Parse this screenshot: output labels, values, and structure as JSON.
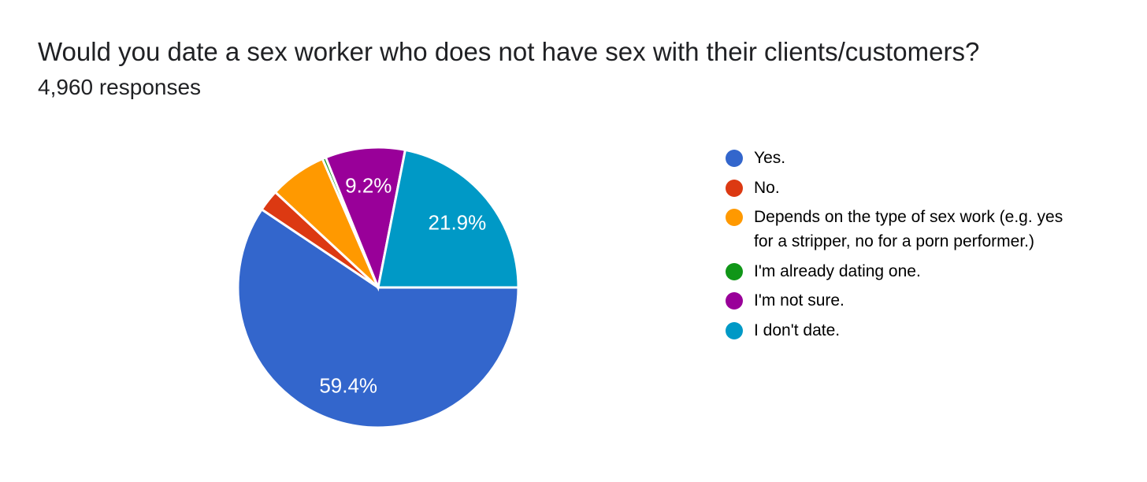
{
  "header": {
    "title": "Would you date a sex worker who does not have sex with their clients/customers?",
    "subtitle": "4,960 responses"
  },
  "chart_data": {
    "type": "pie",
    "title": "Would you date a sex worker who does not have sex with their clients/customers?",
    "subtitle": "4,960 responses",
    "legend_position": "right",
    "start_angle_deg": 0,
    "direction": "clockwise",
    "slice_border_color": "#ffffff",
    "label_text_color": "#ffffff",
    "slices": [
      {
        "id": "yes",
        "label": "Yes.",
        "pct": 59.4,
        "color": "#3366CC",
        "data_label": "59.4%"
      },
      {
        "id": "no",
        "label": "No.",
        "pct": 2.5,
        "color": "#DC3912",
        "data_label": ""
      },
      {
        "id": "depends",
        "label": "Depends on the type of sex work (e.g. yes for a stripper, no for a porn performer.)",
        "pct": 6.6,
        "color": "#FF9900",
        "data_label": ""
      },
      {
        "id": "already-dating",
        "label": "I'm already dating one.",
        "pct": 0.4,
        "color": "#109618",
        "data_label": ""
      },
      {
        "id": "not-sure",
        "label": "I'm not sure.",
        "pct": 9.2,
        "color": "#990099",
        "data_label": "9.2%"
      },
      {
        "id": "dont-date",
        "label": "I don't date.",
        "pct": 21.9,
        "color": "#0099C6",
        "data_label": "21.9%"
      }
    ]
  }
}
